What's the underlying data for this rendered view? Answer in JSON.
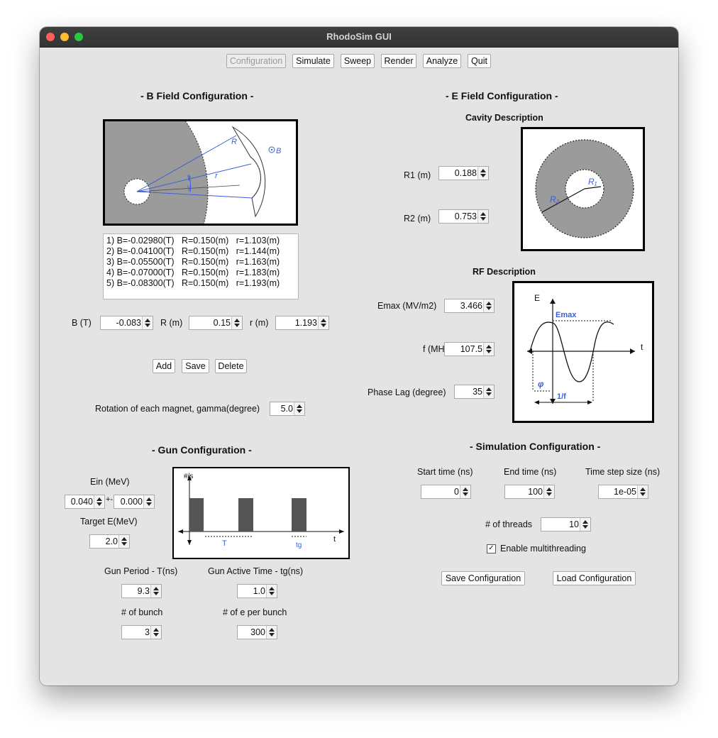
{
  "window": {
    "title": "RhodoSim GUI"
  },
  "toolbar": {
    "buttons": [
      "Configuration",
      "Simulate",
      "Sweep",
      "Render",
      "Analyze",
      "Quit"
    ]
  },
  "bfield": {
    "title": "- B Field Configuration -",
    "diagram_labels": {
      "R": "R",
      "r": "r",
      "gamma": "γ",
      "B": "B"
    },
    "list": [
      "1) B=-0.02980(T)   R=0.150(m)   r=1.103(m)",
      "2) B=-0.04100(T)   R=0.150(m)   r=1.144(m)",
      "3) B=-0.05500(T)   R=0.150(m)   r=1.163(m)",
      "4) B=-0.07000(T)   R=0.150(m)   r=1.183(m)",
      "5) B=-0.08300(T)   R=0.150(m)   r=1.193(m)"
    ],
    "b_label": "B (T)",
    "b_value": "-0.083",
    "R_label": "R (m)",
    "R_value": "0.15",
    "r_label": "r (m)",
    "r_value": "1.193",
    "add": "Add",
    "save": "Save",
    "delete": "Delete",
    "rotation_label": "Rotation of each magnet, gamma(degree)",
    "rotation_value": "5.0"
  },
  "efield": {
    "title": "- E Field Configuration -",
    "cavity_title": "Cavity Description",
    "r1_label": "R1 (m)",
    "r1_value": "0.188",
    "r2_label": "R2 (m)",
    "r2_value": "0.753",
    "cavity_labels": {
      "r2": "R₂",
      "r1": "R₁"
    },
    "rf_title": "RF Description",
    "emax_label": "Emax (MV/m2)",
    "emax_value": "3.466",
    "f_label": "f (MHz)",
    "f_value": "107.5",
    "phase_label": "Phase Lag (degree)",
    "phase_value": "35",
    "rf_labels": {
      "E": "E",
      "t": "t",
      "emax": "Emax",
      "phi": "φ",
      "period": "1/f"
    }
  },
  "gun": {
    "title": "- Gun Configuration -",
    "ein_label": "Ein (MeV)",
    "ein_value": "0.040",
    "pm": "+-",
    "ein_spread": "0.000",
    "target_label": "Target E(MeV)",
    "target_value": "2.0",
    "period_label": "Gun Period - T(ns)",
    "period_value": "9.3",
    "active_label": "Gun Active Time - tg(ns)",
    "active_value": "1.0",
    "bunch_label": "# of bunch",
    "bunch_value": "3",
    "epb_label": "# of e per bunch",
    "epb_value": "300",
    "plot_labels": {
      "y": "#/s",
      "x": "t",
      "T": "T",
      "tg": "tg"
    }
  },
  "sim": {
    "title": "- Simulation Configuration -",
    "start_label": "Start time (ns)",
    "start_value": "0",
    "end_label": "End time (ns)",
    "end_value": "100",
    "step_label": "Time step size (ns)",
    "step_value": "1e-05",
    "threads_label": "# of threads",
    "threads_value": "10",
    "multi_label": "Enable multithreading",
    "multi_checked": "✓",
    "save_conf": "Save Configuration",
    "load_conf": "Load Configuration"
  },
  "colors": {
    "accent_blue": "#3b5fd6",
    "gray_fill": "#9b9b9b"
  }
}
